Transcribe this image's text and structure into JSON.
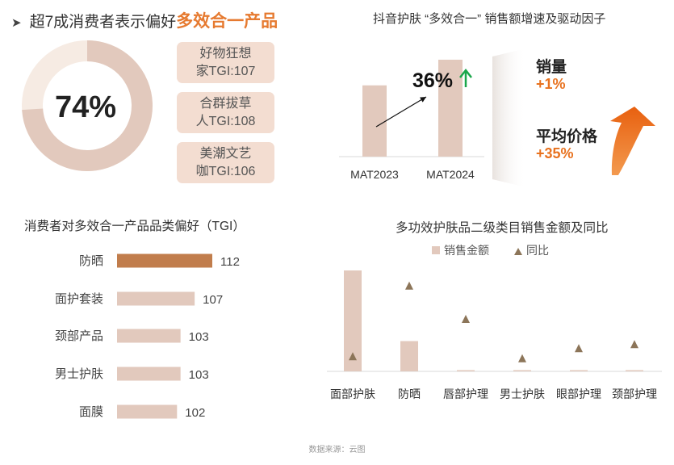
{
  "headline": {
    "prefix": "超7成消费者表示偏好",
    "highlight": "多效合一产品"
  },
  "donut": {
    "label": "74%",
    "value": 74
  },
  "tags": [
    {
      "line1": "好物狂想",
      "line2": "家TGI:107"
    },
    {
      "line1": "合群拔草",
      "line2": "人TGI:108"
    },
    {
      "line1": "美潮文艺",
      "line2": "咖TGI:106"
    }
  ],
  "growth": {
    "title": "抖音护肤 “多效合一” 销售额增速及驱动因子",
    "growth_label": "36%",
    "factors": [
      {
        "name": "销量",
        "value": "+1%"
      },
      {
        "name": "平均价格",
        "value": "+35%"
      }
    ]
  },
  "preference": {
    "title": "消费者对多效合一产品品类偏好（TGI）"
  },
  "secondary": {
    "title": "多功效护肤品二级类目销售金额及同比"
  },
  "source": "数据来源：云图",
  "colors": {
    "accent": "#e67a30",
    "bar": "#e2c9bd",
    "highlight_bar": "#c17d4c",
    "triangle": "#8c7559",
    "up_arrow": "#1aa64a"
  },
  "chart_data": [
    {
      "type": "bar",
      "categories": [
        "MAT2023",
        "MAT2024"
      ],
      "values": [
        1.0,
        1.36
      ],
      "ylim": [
        0,
        1.45
      ]
    },
    {
      "type": "bar",
      "orientation": "horizontal",
      "categories": [
        "防晒",
        "面护套装",
        "颈部产品",
        "男士护肤",
        "面膜"
      ],
      "values": [
        112,
        107,
        103,
        103,
        102
      ],
      "highlight": "防晒",
      "xlim": [
        85,
        112
      ]
    },
    {
      "type": "bar",
      "categories": [
        "面部护肤",
        "防晒",
        "唇部护理",
        "男士护肤",
        "眼部护理",
        "颈部护理"
      ],
      "series": [
        {
          "name": "销售金额",
          "type": "bar",
          "values": [
            100,
            30,
            1,
            1,
            0.5,
            0.3
          ]
        },
        {
          "name": "同比",
          "type": "scatter",
          "marker": "triangle",
          "values": [
            15,
            85,
            52,
            13,
            23,
            27
          ]
        }
      ],
      "legend": "top",
      "ylim": [
        0,
        100
      ]
    }
  ]
}
